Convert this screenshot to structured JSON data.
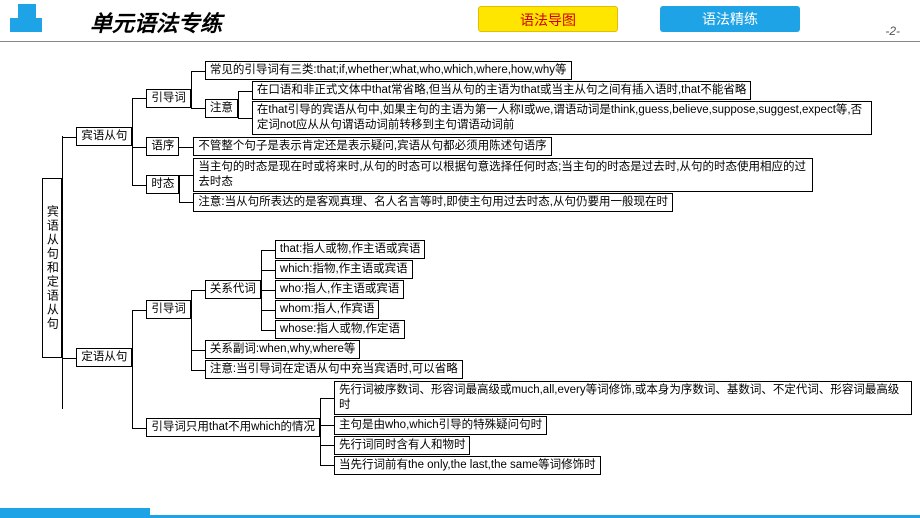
{
  "header": {
    "title": "单元语法专练",
    "btn1": "语法导图",
    "btn2": "语法精练",
    "page": "-2-"
  },
  "styling": {
    "accent_blue": "#1ea3e6",
    "btn_yellow": "#ffe600",
    "btn_yellow_text": "#d00000",
    "border": "#000000",
    "font_body": "SimSun",
    "font_size_body": 11.5,
    "font_size_title": 22
  },
  "tree": {
    "root": "宾语从句和定语从句",
    "a": {
      "label": "宾语从句",
      "c1": {
        "label": "引导词",
        "t1": "常见的引导词有三类:that;if,whether;what,who,which,where,how,why等",
        "n1": {
          "label": "注意",
          "t1": "在口语和非正式文体中that常省略,但当从句的主语为that或当主从句之间有插入语时,that不能省略",
          "t2": "在that引导的宾语从句中,如果主句的主语为第一人称I或we,谓语动词是think,guess,believe,suppose,suggest,expect等,否定词not应从从句谓语动词前转移到主句谓语动词前"
        }
      },
      "c2": {
        "label": "语序",
        "t1": "不管整个句子是表示肯定还是表示疑问,宾语从句都必须用陈述句语序"
      },
      "c3": {
        "label": "时态",
        "t1": "当主句的时态是现在时或将来时,从句的时态可以根据句意选择任何时态;当主句的时态是过去时,从句的时态使用相应的过去时态",
        "t2": "注意:当从句所表达的是客观真理、名人名言等时,即使主句用过去时态,从句仍要用一般现在时"
      }
    },
    "b": {
      "label": "定语从句",
      "c1": {
        "label": "引导词",
        "g1": {
          "label": "关系代词",
          "t1": "that:指人或物,作主语或宾语",
          "t2": "which:指物,作主语或宾语",
          "t3": "who:指人,作主语或宾语",
          "t4": "whom:指人,作宾语",
          "t5": "whose:指人或物,作定语"
        },
        "g2": "关系副词:when,why,where等",
        "g3": "注意:当引导词在定语从句中充当宾语时,可以省略"
      },
      "c2": {
        "label": "引导词只用that不用which的情况",
        "t1": "先行词被序数词、形容词最高级或much,all,every等词修饰,或本身为序数词、基数词、不定代词、形容词最高级时",
        "t2": "主句是由who,which引导的特殊疑问句时",
        "t3": "先行词同时含有人和物时",
        "t4": "当先行词前有the only,the last,the same等词修饰时"
      }
    }
  }
}
